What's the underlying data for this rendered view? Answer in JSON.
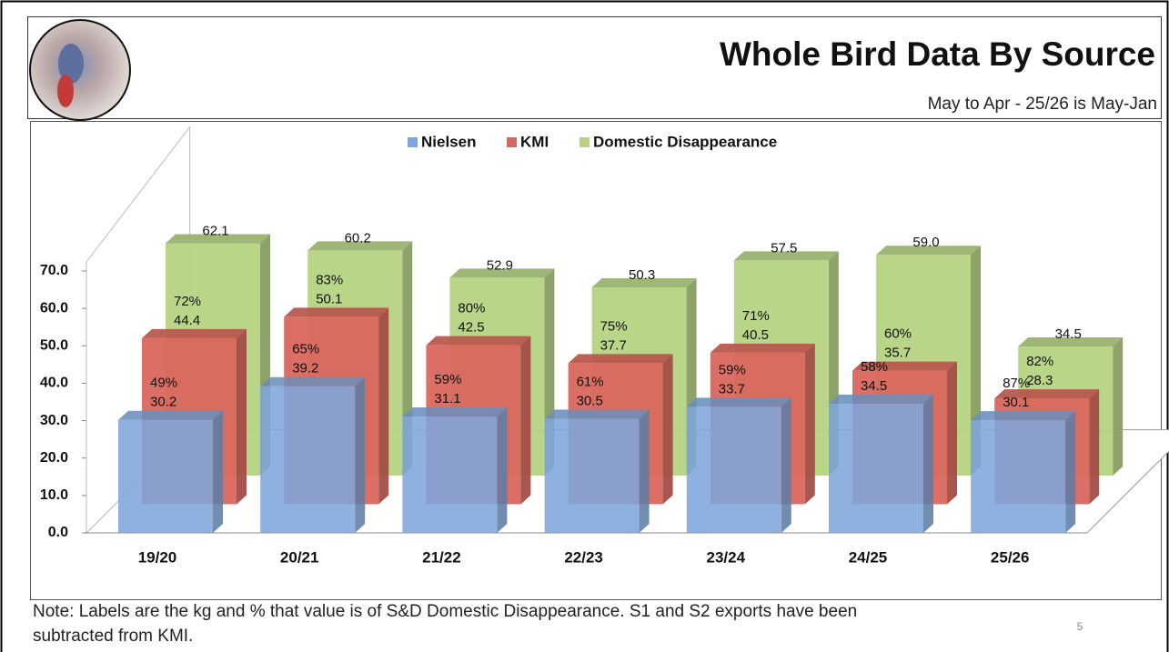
{
  "header": {
    "title": "Whole Bird Data By Source",
    "subtitle": "May to Apr - 25/26 is May-Jan"
  },
  "chart_data": {
    "type": "bar3d",
    "categories": [
      "19/20",
      "20/21",
      "21/22",
      "22/23",
      "23/24",
      "24/25",
      "25/26"
    ],
    "series": [
      {
        "name": "Nielsen",
        "color": "#7fa6dc",
        "values": [
          30.2,
          39.2,
          31.1,
          30.5,
          33.7,
          34.5,
          30.1
        ],
        "value_labels": [
          "30.2",
          "39.2",
          "31.1",
          "30.5",
          "33.7",
          "34.5",
          "30.1"
        ],
        "shares": [
          49,
          65,
          59,
          61,
          59,
          58,
          87
        ],
        "share_labels": [
          "49%",
          "65%",
          "59%",
          "61%",
          "59%",
          "58%",
          "87%"
        ]
      },
      {
        "name": "KMI",
        "color": "#d9675d",
        "values": [
          44.4,
          50.1,
          42.5,
          37.7,
          40.5,
          35.7,
          28.3
        ],
        "value_labels": [
          "44.4",
          "50.1",
          "42.5",
          "37.7",
          "40.5",
          "35.7",
          "28.3"
        ],
        "shares": [
          72,
          83,
          80,
          75,
          71,
          60,
          82
        ],
        "share_labels": [
          "72%",
          "83%",
          "80%",
          "75%",
          "71%",
          "60%",
          "82%"
        ]
      },
      {
        "name": "Domestic Disappearance",
        "color": "#b5d382",
        "values": [
          62.1,
          60.2,
          52.9,
          50.3,
          57.5,
          59.0,
          34.5
        ],
        "value_labels": [
          "62.1",
          "60.2",
          "52.9",
          "50.3",
          "57.5",
          "59.0",
          "34.5"
        ]
      }
    ],
    "ylim": [
      0,
      70
    ],
    "yticks": [
      {
        "value": 0,
        "label": "0.0"
      },
      {
        "value": 10,
        "label": "10.0"
      },
      {
        "value": 20,
        "label": "20.0"
      },
      {
        "value": 30,
        "label": "30.0"
      },
      {
        "value": 40,
        "label": "40.0"
      },
      {
        "value": 50,
        "label": "50.0"
      },
      {
        "value": 60,
        "label": "60.0"
      },
      {
        "value": 70,
        "label": "70.0"
      }
    ],
    "grid": false,
    "legend": "top"
  },
  "footer": {
    "note_line1": "Note: Labels are the kg and % that value is of S&D Domestic Disappearance.  S1 and S2 exports have been",
    "note_line2": "subtracted from KMI.",
    "page": "5"
  }
}
